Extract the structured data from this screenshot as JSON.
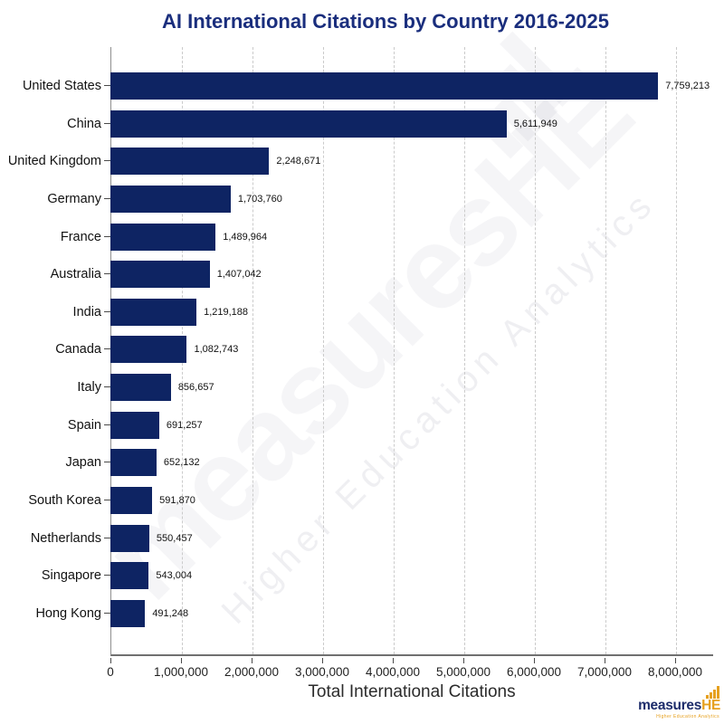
{
  "chart_data": {
    "type": "bar",
    "orientation": "horizontal",
    "title": "AI International Citations by Country 2016-2025",
    "xlabel": "Total International Citations",
    "ylabel": "",
    "categories": [
      "United States",
      "China",
      "United Kingdom",
      "Germany",
      "France",
      "Australia",
      "India",
      "Canada",
      "Italy",
      "Spain",
      "Japan",
      "South Korea",
      "Netherlands",
      "Singapore",
      "Hong Kong"
    ],
    "values": [
      7759213,
      5611949,
      2248671,
      1703760,
      1489964,
      1407042,
      1219188,
      1082743,
      856657,
      691257,
      652132,
      591870,
      550457,
      543004,
      491248
    ],
    "value_labels": [
      "7,759,213",
      "5,611,949",
      "2,248,671",
      "1,703,760",
      "1,489,964",
      "1,407,042",
      "1,219,188",
      "1,082,743",
      "856,657",
      "691,257",
      "652,132",
      "591,870",
      "550,457",
      "543,004",
      "491,248"
    ],
    "x_tick_values": [
      0,
      1000000,
      2000000,
      3000000,
      4000000,
      5000000,
      6000000,
      7000000,
      8000000
    ],
    "x_tick_labels": [
      "0",
      "1,000,000",
      "2,000,000",
      "3,000,000",
      "4,000,000",
      "5,000,000",
      "6,000,000",
      "7,000,000",
      "8,000,000"
    ],
    "xlim": [
      0,
      8540000
    ],
    "grid": "vertical dashed gridlines at 1,000,000 intervals",
    "legend": "none",
    "bar_color": "#0E2463"
  },
  "watermark": {
    "brand": "measuresHE",
    "subtitle": "Higher Education Analytics"
  },
  "logo": {
    "main": "measures",
    "suffix": "HE",
    "tagline": "Higher Education Analytics"
  },
  "colors": {
    "bar": "#0E2463",
    "title": "#1A2E7D",
    "logo_navy": "#1E2D6B",
    "logo_gold": "#E6A01E",
    "axis_line": "#707070",
    "gridline": "#cbcbcb",
    "text": "#111111"
  }
}
